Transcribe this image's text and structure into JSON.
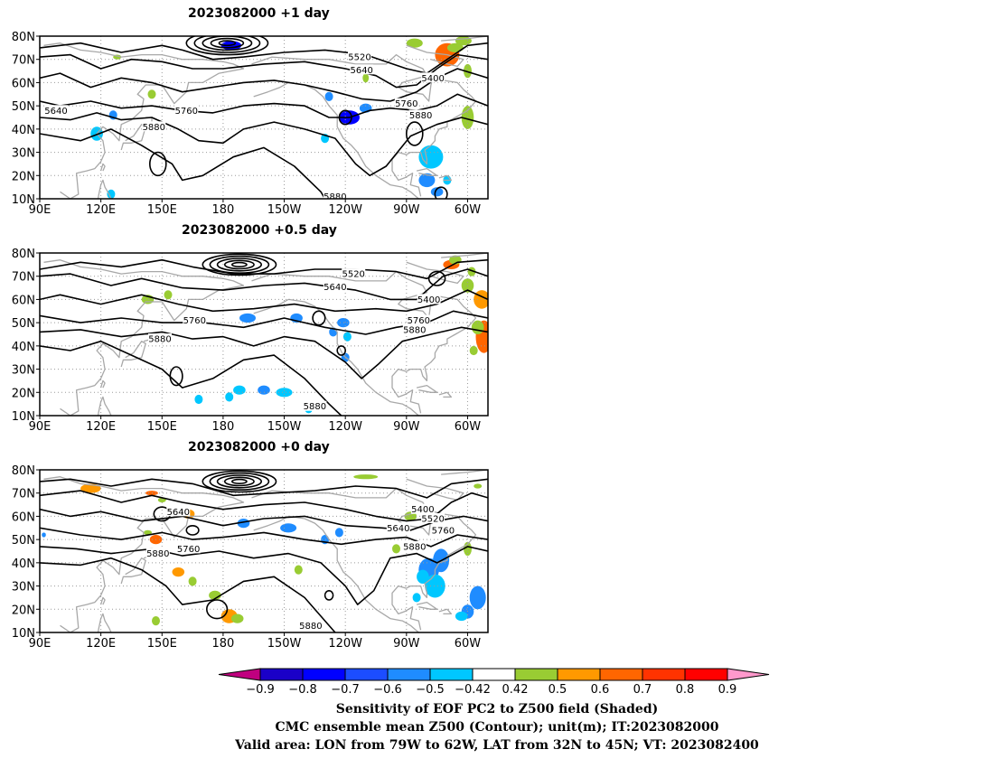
{
  "panels": [
    {
      "title": "2023082000  +1  day",
      "contour_labels": [
        {
          "text": "5520",
          "lon": -113,
          "lat": 71
        },
        {
          "text": "5640",
          "lon": -112,
          "lat": 65.5
        },
        {
          "text": "5400",
          "lon": -77,
          "lat": 62
        },
        {
          "text": "5640",
          "lon": 98,
          "lat": 48
        },
        {
          "text": "5760",
          "lon": 162,
          "lat": 48
        },
        {
          "text": "5880",
          "lon": 146,
          "lat": 41
        },
        {
          "text": "5760",
          "lon": -90,
          "lat": 51
        },
        {
          "text": "5880",
          "lon": -83,
          "lat": 46
        },
        {
          "text": "5880",
          "lon": -125,
          "lat": 11
        }
      ]
    },
    {
      "title": "2023082000  +0.5  day",
      "contour_labels": [
        {
          "text": "5520",
          "lon": -116,
          "lat": 71
        },
        {
          "text": "5640",
          "lon": -125,
          "lat": 65.5
        },
        {
          "text": "5400",
          "lon": -79,
          "lat": 60
        },
        {
          "text": "5760",
          "lon": 166,
          "lat": 51
        },
        {
          "text": "5880",
          "lon": 149,
          "lat": 43
        },
        {
          "text": "5760",
          "lon": -84,
          "lat": 51
        },
        {
          "text": "5880",
          "lon": -86,
          "lat": 47
        },
        {
          "text": "5880",
          "lon": -135,
          "lat": 14
        }
      ]
    },
    {
      "title": "2023082000  +0  day",
      "contour_labels": [
        {
          "text": "5640",
          "lon": 158,
          "lat": 62
        },
        {
          "text": "5400",
          "lon": -82,
          "lat": 63
        },
        {
          "text": "5520",
          "lon": -77,
          "lat": 59
        },
        {
          "text": "5640",
          "lon": -94,
          "lat": 55
        },
        {
          "text": "5760",
          "lon": -72,
          "lat": 54
        },
        {
          "text": "5880",
          "lon": -86,
          "lat": 47
        },
        {
          "text": "5760",
          "lon": 163,
          "lat": 46
        },
        {
          "text": "5880",
          "lon": 148,
          "lat": 44
        },
        {
          "text": "5880",
          "lon": -137,
          "lat": 13
        }
      ]
    }
  ],
  "axes": {
    "y_ticks": [
      "10N",
      "20N",
      "30N",
      "40N",
      "50N",
      "60N",
      "70N",
      "80N"
    ],
    "x_ticks": [
      "90E",
      "120E",
      "150E",
      "180",
      "150W",
      "120W",
      "90W",
      "60W"
    ],
    "lon_range_deg_east": [
      90,
      310
    ],
    "lat_range": [
      10,
      80
    ]
  },
  "colorbar": {
    "tick_labels": [
      "−0.9",
      "−0.8",
      "−0.7",
      "−0.6",
      "−0.5",
      "−0.42",
      "0.42",
      "0.5",
      "0.6",
      "0.7",
      "0.8",
      "0.9"
    ],
    "colors": [
      "#c0007f",
      "#1a00c8",
      "#0000ff",
      "#1c4dff",
      "#1f8cff",
      "#00c7ff",
      "#ffffff",
      "#99cc33",
      "#ff9900",
      "#ff6600",
      "#ff3300",
      "#ff0000",
      "#ff99cc"
    ]
  },
  "caption": {
    "line1": "Sensitivity of EOF PC2 to Z500 field (Shaded)",
    "line2": "CMC ensemble mean Z500 (Contour); unit(m); IT:2023082000",
    "line3": "Valid area: LON from 79W to 62W, LAT from 32N to 45N; VT: 2023082400"
  }
}
